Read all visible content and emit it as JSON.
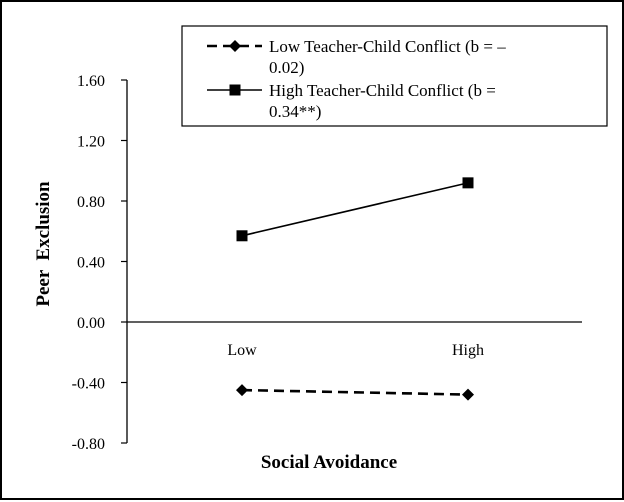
{
  "chart_data": {
    "type": "line",
    "categories": [
      "Low",
      "High"
    ],
    "series": [
      {
        "name": "Low Teacher-Child Conflict (b = – 0.02)",
        "name_lines": [
          "Low Teacher-Child Conflict (b = –",
          "0.02)"
        ],
        "values": [
          -0.45,
          -0.48
        ],
        "line_style": "dashed",
        "marker": "diamond",
        "color": "#000000"
      },
      {
        "name": "High Teacher-Child Conflict (b = 0.34**)",
        "name_lines": [
          "High Teacher-Child Conflict (b =",
          "0.34**)"
        ],
        "values": [
          0.57,
          0.92
        ],
        "line_style": "solid",
        "marker": "square",
        "color": "#000000"
      }
    ],
    "y_ticks": [
      "1.60",
      "1.20",
      "0.80",
      "0.40",
      "0.00",
      "-0.40",
      "-0.80"
    ],
    "xlabel": "Social Avoidance",
    "ylabel": "Peer  Exclusion",
    "ylim": [
      -0.8,
      1.6
    ],
    "grid": false,
    "legend_position": "top-right"
  }
}
